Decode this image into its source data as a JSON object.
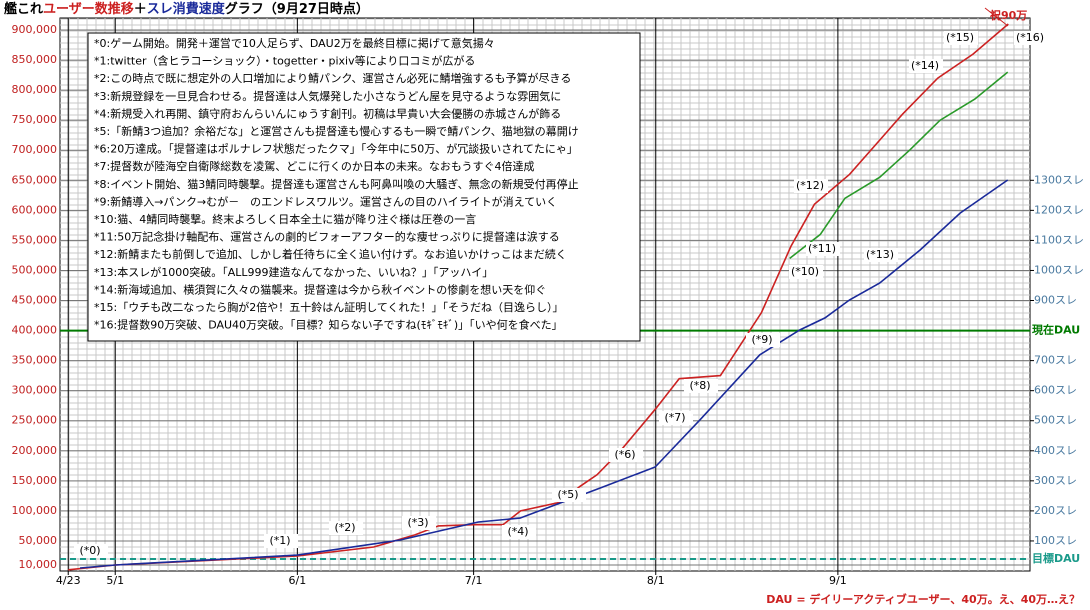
{
  "chart_data": {
    "type": "line",
    "title_parts": [
      {
        "text": "艦これ",
        "color": "#000000"
      },
      {
        "text": "ユーザー数推移",
        "color": "#cc2020"
      },
      {
        "text": "＋",
        "color": "#000000"
      },
      {
        "text": "スレ消費速度",
        "color": "#1a2a9a"
      },
      {
        "text": "グラフ（9月27日時点）",
        "color": "#000000"
      }
    ],
    "xlim": [
      111.6,
      276.7
    ],
    "xticks": [
      {
        "value": 113,
        "label": "4/23"
      },
      {
        "value": 121,
        "label": "5/1"
      },
      {
        "value": 152,
        "label": "6/1"
      },
      {
        "value": 182,
        "label": "7/1"
      },
      {
        "value": 213,
        "label": "8/1"
      },
      {
        "value": 244,
        "label": "9/1"
      }
    ],
    "ylim": [
      0,
      920000
    ],
    "yticks": [
      {
        "value": 10000,
        "label": "10,000"
      },
      {
        "value": 50000,
        "label": "50,000"
      },
      {
        "value": 100000,
        "label": "100,000"
      },
      {
        "value": 150000,
        "label": "150,000"
      },
      {
        "value": 200000,
        "label": "200,000"
      },
      {
        "value": 250000,
        "label": "250,000"
      },
      {
        "value": 300000,
        "label": "300,000"
      },
      {
        "value": 350000,
        "label": "350,000"
      },
      {
        "value": 400000,
        "label": "400,000"
      },
      {
        "value": 450000,
        "label": "450,000"
      },
      {
        "value": 500000,
        "label": "500,000"
      },
      {
        "value": 550000,
        "label": "550,000"
      },
      {
        "value": 600000,
        "label": "600,000"
      },
      {
        "value": 650000,
        "label": "650,000"
      },
      {
        "value": 700000,
        "label": "700,000"
      },
      {
        "value": 750000,
        "label": "750,000"
      },
      {
        "value": 800000,
        "label": "800,000"
      },
      {
        "value": 850000,
        "label": "850,000"
      },
      {
        "value": 900000,
        "label": "900,000"
      }
    ],
    "y2lim": [
      0,
      1840
    ],
    "y2ticks": [
      {
        "value": 100,
        "label": "100スレ"
      },
      {
        "value": 200,
        "label": "200スレ"
      },
      {
        "value": 300,
        "label": "300スレ"
      },
      {
        "value": 400,
        "label": "400スレ"
      },
      {
        "value": 500,
        "label": "500スレ"
      },
      {
        "value": 600,
        "label": "600スレ"
      },
      {
        "value": 700,
        "label": "700スレ"
      },
      {
        "value": 900,
        "label": "900スレ"
      },
      {
        "value": 1000,
        "label": "1000スレ"
      },
      {
        "value": 1100,
        "label": "1100スレ"
      },
      {
        "value": 1200,
        "label": "1200スレ"
      },
      {
        "value": 1300,
        "label": "1300スレ"
      }
    ],
    "grid": true,
    "series": [
      {
        "color": "#cc2222",
        "x": [
          113,
          121,
          152,
          165,
          172,
          176,
          182,
          187,
          190,
          197,
          200,
          203,
          207,
          213,
          217,
          224,
          231,
          236,
          240,
          246,
          255,
          261,
          267,
          273
        ],
        "values": [
          2000,
          10000,
          25000,
          40000,
          60000,
          75000,
          77000,
          77000,
          100000,
          115000,
          140000,
          160000,
          200000,
          270000,
          320000,
          325000,
          430000,
          540000,
          610000,
          660000,
          760000,
          820000,
          860000,
          910000
        ]
      },
      {
        "color": "#2a9a2a",
        "x": [
          235.8,
          241,
          245.2,
          251.1,
          256.2,
          261.4,
          267.3,
          272.9
        ],
        "values": [
          520000,
          560000,
          620000,
          655000,
          700000,
          750000,
          785000,
          830000
        ]
      },
      {
        "color": "#1a2a9a",
        "axis": "y2",
        "x": [
          115,
          121,
          152,
          169.5,
          182.8,
          189.9,
          196.7,
          203.5,
          212.9,
          220.5,
          230.7,
          237.5,
          241.8,
          246,
          251.1,
          258,
          264.8,
          272.9
        ],
        "values": [
          10,
          20,
          53,
          103,
          163,
          176,
          226,
          276,
          346,
          502,
          719,
          802,
          842,
          902,
          958,
          1068,
          1191,
          1301
        ]
      }
    ],
    "reference_lines": [
      {
        "value": 400000,
        "label": "現在DAU",
        "color": "#007a00",
        "dashed": false
      },
      {
        "value": 20000,
        "label": "目標DAU",
        "color": "#1a9a8a",
        "dashed": true
      }
    ],
    "annotations": [
      "(*0)",
      "(*1)",
      "(*2)",
      "(*3)",
      "(*4)",
      "(*5)",
      "(*6)",
      "(*7)",
      "(*8)",
      "(*9)",
      "(*10)",
      "(*11)",
      "(*12)",
      "(*13)",
      "(*14)",
      "(*15)",
      "(*16)"
    ],
    "callout": "祝90万",
    "notes": [
      "*0:ゲーム開始。開発＋運営で10人足らず、DAU2万を最終目標に掲げて意気揚々",
      "*1:twitter（含ヒラコーショック）・togetter・pixiv等により口コミが広がる",
      "*2:この時点で既に想定外の人口増加により鯖パンク、運営さん必死に鯖増強するも予算が尽きる",
      "*3:新規登録を一旦見合わせる。提督達は人気爆発した小さなうどん屋を見守るような雰囲気に",
      "*4:新規受入れ再開、鎮守府おんらいんにゅうす創刊。初稿は早貴い大会優勝の赤城さんが飾る",
      "*5:「新鯖3つ追加？余裕だな」と運営さんも提督達も慢心するも一瞬で鯖パンク、猫地獄の幕開け",
      "*6:20万達成。「提督達はポルナレフ状態だったクマ」「今年中に50万、が冗談扱いされてたにゃ」",
      "*7:提督数が陸海空自衛隊総数を凌駕、どこに行くのか日本の未来。なおもうすぐ4倍達成",
      "*8:イベント開始、猫3鯖同時襲撃。提督達も運営さんも阿鼻叫喚の大騒ぎ、無念の新規受付再停止",
      "*9:新鯖導入→パンク→むが－　のエンドレスワルツ。運営さんの目のハイライトが消えていく",
      "*10:猫、4鯖同時襲撃。終末よろしく日本全土に猫が降り注ぐ様は圧巻の一言",
      "*11:50万記念掛け軸配布、運営さんの劇的ビフォーアフター的な痩せっぷりに提督達は涙する",
      "*12:新鯖またも前倒しで追加、しかし着任待ちに全く追い付けず。なお追いかけっこはまだ続く",
      "*13:本スレが1000突破。「ALL999建造なんてなかった、いいね？」「アッハイ」",
      "*14:新海域追加、横須賀に久々の猫襲来。提督達は今から秋イベントの惨劇を想い天を仰ぐ",
      "*15:「ウチも改二なったら胸が2倍や！五十鈴はん証明してくれた！」「そうだね（目逸らし）」",
      "*16:提督数90万突破、DAU40万突破。「目標？知らない子ですね(ﾓｷﾞﾓｷﾞ)」「いや何を食べた」"
    ],
    "footer": "DAU = デイリーアクティブユーザー、40万。え、40万…え？",
    "footer_color": "#cc2020"
  }
}
